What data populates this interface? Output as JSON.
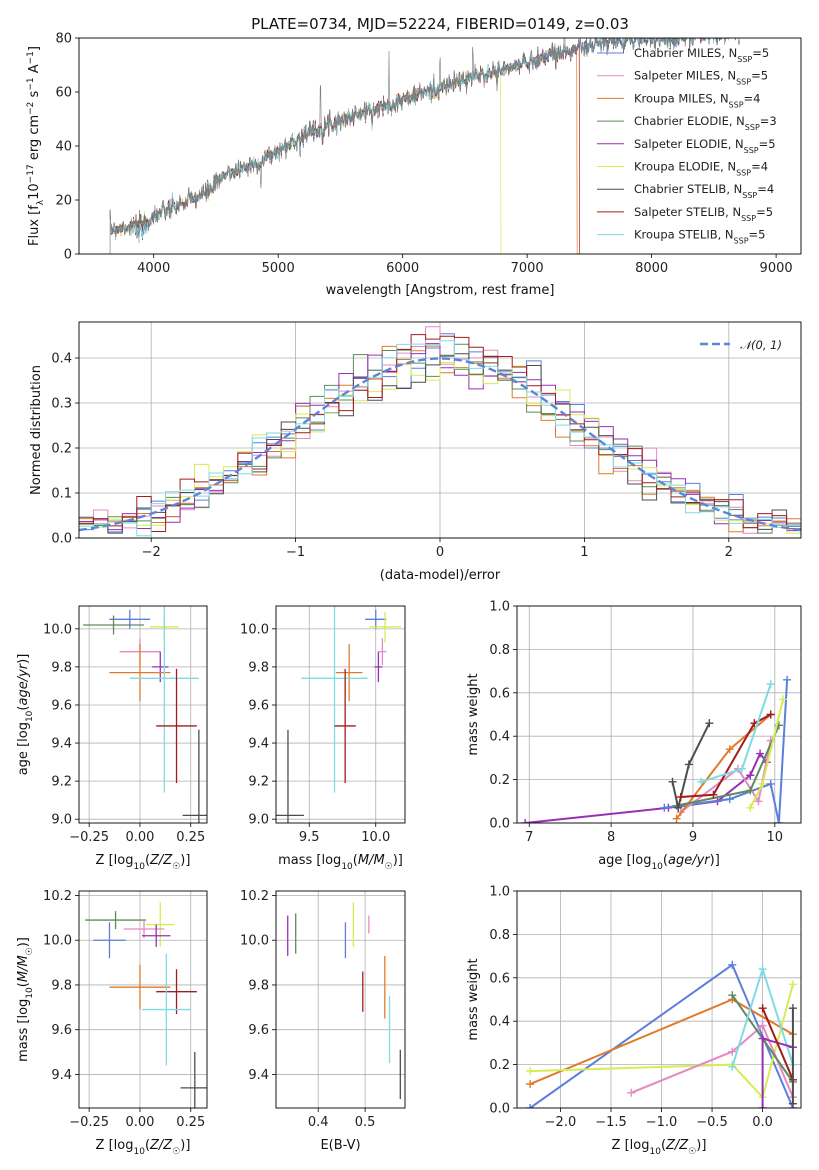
{
  "colors": {
    "s1": "#5b7fdb",
    "s2": "#e38ac5",
    "s3": "#e07b2a",
    "s4": "#5f8a5c",
    "s5": "#9a2fb5",
    "s6": "#d6ec54",
    "s7": "#4d4d4d",
    "s8": "#a31c1c",
    "s9": "#7fdbe3",
    "normal": "#5b86d6",
    "grid": "#b0b0b0"
  },
  "chart_data": [
    {
      "id": "spectrum",
      "type": "line",
      "title": "PLATE=0734, MJD=52224, FIBERID=0149, z=0.03",
      "xlabel": "wavelength [Angstrom, rest frame]",
      "ylabel": "Flux [f_λ 10^-17 erg cm^-2 s^-1 A^-1]",
      "xlim": [
        3400,
        9200
      ],
      "ylim": [
        0,
        80
      ],
      "xticks": [
        "4000",
        "5000",
        "6000",
        "7000",
        "8000",
        "9000"
      ],
      "yticks": [
        "0",
        "20",
        "40",
        "60",
        "80"
      ],
      "grid": false,
      "legend_position": "right",
      "spectrum_knots": [
        [
          3650,
          9
        ],
        [
          3900,
          11
        ],
        [
          4000,
          14
        ],
        [
          4200,
          18
        ],
        [
          4400,
          22
        ],
        [
          4600,
          30
        ],
        [
          4800,
          33
        ],
        [
          5000,
          38
        ],
        [
          5200,
          44
        ],
        [
          5400,
          48
        ],
        [
          5600,
          51
        ],
        [
          5800,
          54
        ],
        [
          6000,
          57
        ],
        [
          6200,
          60
        ],
        [
          6400,
          63
        ],
        [
          6600,
          66
        ],
        [
          6800,
          68
        ],
        [
          7000,
          71
        ],
        [
          7200,
          74
        ],
        [
          7400,
          76
        ],
        [
          7600,
          78
        ],
        [
          7800,
          79
        ],
        [
          8000,
          80
        ],
        [
          8200,
          80
        ],
        [
          8400,
          81
        ],
        [
          8700,
          82
        ]
      ],
      "cutoffs": {
        "Kroupa ELODIE": 6790,
        "Salpeter STELIB": 7420,
        "Kroupa MILES": 7400
      },
      "legend": [
        {
          "name": "Chabrier MILES, N_SSP=5",
          "pre": "Chabrier MILES, N",
          "sub": "SSP",
          "post": "=5",
          "color": "s1"
        },
        {
          "name": "Salpeter MILES, N_SSP=5",
          "pre": "Salpeter MILES, N",
          "sub": "SSP",
          "post": "=5",
          "color": "s2"
        },
        {
          "name": "Kroupa MILES, N_SSP=4",
          "pre": "Kroupa MILES, N",
          "sub": "SSP",
          "post": "=4",
          "color": "s3"
        },
        {
          "name": "Chabrier ELODIE, N_SSP=3",
          "pre": "Chabrier ELODIE, N",
          "sub": "SSP",
          "post": "=3",
          "color": "s4"
        },
        {
          "name": "Salpeter ELODIE, N_SSP=5",
          "pre": "Salpeter ELODIE, N",
          "sub": "SSP",
          "post": "=5",
          "color": "s5"
        },
        {
          "name": "Kroupa ELODIE, N_SSP=4",
          "pre": "Kroupa ELODIE, N",
          "sub": "SSP",
          "post": "=4",
          "color": "s6"
        },
        {
          "name": "Chabrier STELIB, N_SSP=4",
          "pre": "Chabrier STELIB, N",
          "sub": "SSP",
          "post": "=4",
          "color": "s7"
        },
        {
          "name": "Salpeter STELIB, N_SSP=5",
          "pre": "Salpeter STELIB, N",
          "sub": "SSP",
          "post": "=5",
          "color": "s8"
        },
        {
          "name": "Kroupa STELIB, N_SSP=5",
          "pre": "Kroupa STELIB, N",
          "sub": "SSP",
          "post": "=5",
          "color": "s9"
        }
      ]
    },
    {
      "id": "residuals",
      "type": "bar",
      "xlabel": "(data-model)/error",
      "ylabel": "Normed distribution",
      "xlim": [
        -2.5,
        2.5
      ],
      "ylim": [
        0,
        0.48
      ],
      "xticks": [
        "−2",
        "−1",
        "0",
        "1",
        "2"
      ],
      "yticks": [
        "0.0",
        "0.1",
        "0.2",
        "0.3",
        "0.4"
      ],
      "grid": true,
      "bin_width": 0.1,
      "legend_label": "𝒩(0, 1)",
      "legend_position": "top-right"
    },
    {
      "id": "age_vs_Z",
      "type": "scatter",
      "xlabel": "Z [log10(Z/Z☉)]",
      "ylabel": "age [log10(age/yr)]",
      "xlim": [
        -0.3,
        0.33
      ],
      "ylim": [
        8.98,
        10.12
      ],
      "xticks": [
        "−0.25",
        "0.00",
        "0.25"
      ],
      "yticks": [
        "9.0",
        "9.2",
        "9.4",
        "9.6",
        "9.8",
        "10.0"
      ],
      "grid": true,
      "points": [
        {
          "color": "s1",
          "x": -0.05,
          "xerr": 0.1,
          "y": 10.05,
          "yerr": 0.05
        },
        {
          "color": "s4",
          "x": -0.13,
          "xerr": 0.15,
          "y": 10.02,
          "yerr": 0.05
        },
        {
          "color": "s6",
          "x": 0.12,
          "xerr": 0.07,
          "y": 10.01,
          "yerr": 0.08
        },
        {
          "color": "s2",
          "x": 0.0,
          "xerr": 0.1,
          "y": 9.88,
          "yerr": 0.07
        },
        {
          "color": "s5",
          "x": 0.1,
          "xerr": 0.04,
          "y": 9.8,
          "yerr": 0.08
        },
        {
          "color": "s3",
          "x": 0.0,
          "xerr": 0.15,
          "y": 9.77,
          "yerr": 0.15
        },
        {
          "color": "s9",
          "x": 0.12,
          "xerr": 0.17,
          "y": 9.74,
          "yerr": 0.6
        },
        {
          "color": "s8",
          "x": 0.18,
          "xerr": 0.1,
          "y": 9.49,
          "yerr": 0.3
        },
        {
          "color": "s7",
          "x": 0.29,
          "xerr": 0.08,
          "y": 9.02,
          "yerr": 0.45
        }
      ]
    },
    {
      "id": "age_vs_mass",
      "type": "scatter",
      "xlabel": "mass [log10(M/M☉)]",
      "xlim": [
        9.25,
        10.22
      ],
      "ylim": [
        8.98,
        10.12
      ],
      "xticks": [
        "9.5",
        "10.0"
      ],
      "yticks": [
        "9.0",
        "9.2",
        "9.4",
        "9.6",
        "9.8",
        "10.0"
      ],
      "grid": true,
      "points": [
        {
          "color": "s1",
          "x": 10.0,
          "xerr": 0.08,
          "y": 10.05,
          "yerr": 0.05
        },
        {
          "color": "s6",
          "x": 10.07,
          "xerr": 0.12,
          "y": 10.01,
          "yerr": 0.08
        },
        {
          "color": "s2",
          "x": 10.05,
          "xerr": 0.03,
          "y": 9.88,
          "yerr": 0.07
        },
        {
          "color": "s5",
          "x": 10.02,
          "xerr": 0.03,
          "y": 9.8,
          "yerr": 0.08
        },
        {
          "color": "s3",
          "x": 9.8,
          "xerr": 0.1,
          "y": 9.77,
          "yerr": 0.15
        },
        {
          "color": "s9",
          "x": 9.69,
          "xerr": 0.25,
          "y": 9.74,
          "yerr": 0.6
        },
        {
          "color": "s8",
          "x": 9.77,
          "xerr": 0.08,
          "y": 9.49,
          "yerr": 0.3
        },
        {
          "color": "s7",
          "x": 9.34,
          "xerr": 0.12,
          "y": 9.02,
          "yerr": 0.45
        }
      ]
    },
    {
      "id": "mass_weight_vs_age",
      "type": "line",
      "xlabel": "age [log10(age/yr)]",
      "ylabel": "mass weight",
      "xlim": [
        6.85,
        10.32
      ],
      "ylim": [
        0,
        1.0
      ],
      "xticks": [
        "7",
        "8",
        "9",
        "10"
      ],
      "yticks": [
        "0.0",
        "0.2",
        "0.4",
        "0.6",
        "0.8",
        "1.0"
      ],
      "grid": true,
      "series": [
        {
          "color": "s5",
          "points": [
            [
              6.95,
              0.0
            ],
            [
              8.7,
              0.07
            ],
            [
              9.3,
              0.1
            ],
            [
              9.7,
              0.22
            ],
            [
              9.82,
              0.32
            ],
            [
              9.9,
              0.28
            ]
          ]
        },
        {
          "color": "s1",
          "points": [
            [
              8.65,
              0.07
            ],
            [
              9.45,
              0.11
            ],
            [
              9.95,
              0.18
            ],
            [
              10.05,
              0.0
            ],
            [
              10.15,
              0.66
            ]
          ]
        },
        {
          "color": "s2",
          "points": [
            [
              8.85,
              0.05
            ],
            [
              9.55,
              0.25
            ],
            [
              9.8,
              0.1
            ],
            [
              9.95,
              0.38
            ]
          ]
        },
        {
          "color": "s3",
          "points": [
            [
              8.8,
              0.02
            ],
            [
              9.45,
              0.34
            ],
            [
              9.95,
              0.5
            ]
          ]
        },
        {
          "color": "s4",
          "points": [
            [
              8.8,
              0.08
            ],
            [
              9.7,
              0.15
            ],
            [
              10.05,
              0.45
            ]
          ]
        },
        {
          "color": "s6",
          "points": [
            [
              9.7,
              0.07
            ],
            [
              9.85,
              0.18
            ],
            [
              10.1,
              0.57
            ]
          ]
        },
        {
          "color": "s7",
          "points": [
            [
              8.75,
              0.19
            ],
            [
              8.82,
              0.07
            ],
            [
              8.95,
              0.27
            ],
            [
              9.2,
              0.46
            ]
          ]
        },
        {
          "color": "s8",
          "points": [
            [
              8.85,
              0.12
            ],
            [
              9.25,
              0.13
            ],
            [
              9.75,
              0.46
            ],
            [
              9.95,
              0.5
            ]
          ]
        },
        {
          "color": "s9",
          "points": [
            [
              9.1,
              0.19
            ],
            [
              9.6,
              0.25
            ],
            [
              9.95,
              0.64
            ]
          ]
        }
      ]
    },
    {
      "id": "mass_vs_Z",
      "type": "scatter",
      "xlabel": "Z [log10(Z/Z☉)]",
      "ylabel": "mass [log10(M/M☉)]",
      "xlim": [
        -0.3,
        0.33
      ],
      "ylim": [
        9.25,
        10.22
      ],
      "xticks": [
        "−0.25",
        "0.00",
        "0.25"
      ],
      "yticks": [
        "9.4",
        "9.6",
        "9.8",
        "10.0",
        "10.2"
      ],
      "grid": true,
      "points": [
        {
          "color": "s4",
          "x": -0.12,
          "xerr": 0.15,
          "y": 10.09,
          "yerr": 0.04
        },
        {
          "color": "s6",
          "x": 0.1,
          "xerr": 0.07,
          "y": 10.07,
          "yerr": 0.1
        },
        {
          "color": "s2",
          "x": 0.02,
          "xerr": 0.1,
          "y": 10.05,
          "yerr": 0.04
        },
        {
          "color": "s5",
          "x": 0.08,
          "xerr": 0.07,
          "y": 10.02,
          "yerr": 0.05
        },
        {
          "color": "s1",
          "x": -0.15,
          "xerr": 0.08,
          "y": 10.0,
          "yerr": 0.08
        },
        {
          "color": "s3",
          "x": 0.0,
          "xerr": 0.15,
          "y": 9.79,
          "yerr": 0.1
        },
        {
          "color": "s8",
          "x": 0.18,
          "xerr": 0.1,
          "y": 9.77,
          "yerr": 0.1
        },
        {
          "color": "s9",
          "x": 0.13,
          "xerr": 0.12,
          "y": 9.69,
          "yerr": 0.25
        },
        {
          "color": "s7",
          "x": 0.27,
          "xerr": 0.07,
          "y": 9.34,
          "yerr": 0.16
        }
      ]
    },
    {
      "id": "mass_vs_ebv",
      "type": "scatter",
      "xlabel": "E(B-V)",
      "xlim": [
        0.31,
        0.585
      ],
      "ylim": [
        9.25,
        10.22
      ],
      "xticks": [
        "0.4",
        "0.5"
      ],
      "yticks": [
        "9.4",
        "9.6",
        "9.8",
        "10.0",
        "10.2"
      ],
      "grid": true,
      "points": [
        {
          "color": "s5",
          "x": 0.335,
          "y": 10.02,
          "yerr": 0.09
        },
        {
          "color": "s4",
          "x": 0.352,
          "y": 10.03,
          "yerr": 0.09
        },
        {
          "color": "s1",
          "x": 0.458,
          "y": 10.0,
          "yerr": 0.08
        },
        {
          "color": "s6",
          "x": 0.475,
          "y": 10.07,
          "yerr": 0.1
        },
        {
          "color": "s2",
          "x": 0.508,
          "y": 10.07,
          "yerr": 0.04
        },
        {
          "color": "s8",
          "x": 0.495,
          "y": 9.77,
          "yerr": 0.09
        },
        {
          "color": "s3",
          "x": 0.542,
          "y": 9.79,
          "yerr": 0.14
        },
        {
          "color": "s9",
          "x": 0.552,
          "y": 9.6,
          "yerr": 0.15
        },
        {
          "color": "s7",
          "x": 0.575,
          "y": 9.4,
          "yerr": 0.11
        }
      ]
    },
    {
      "id": "mass_weight_vs_Z",
      "type": "line",
      "xlabel": "Z [log10(Z/Z☉)]",
      "ylabel": "mass weight",
      "xlim": [
        -2.43,
        0.38
      ],
      "ylim": [
        0,
        1.0
      ],
      "xticks": [
        "−2.0",
        "−1.5",
        "−1.0",
        "−0.5",
        "0.0"
      ],
      "yticks": [
        "0.0",
        "0.2",
        "0.4",
        "0.6",
        "0.8",
        "1.0"
      ],
      "grid": true,
      "series": [
        {
          "color": "s1",
          "points": [
            [
              -2.3,
              0.0
            ],
            [
              -0.3,
              0.66
            ],
            [
              0.3,
              0.0
            ]
          ]
        },
        {
          "color": "s3",
          "points": [
            [
              -2.3,
              0.11
            ],
            [
              -0.3,
              0.5
            ],
            [
              0.3,
              0.34
            ]
          ]
        },
        {
          "color": "s6",
          "points": [
            [
              -2.3,
              0.17
            ],
            [
              -0.3,
              0.2
            ],
            [
              0.0,
              0.05
            ],
            [
              0.3,
              0.57
            ]
          ]
        },
        {
          "color": "s2",
          "points": [
            [
              -1.3,
              0.07
            ],
            [
              -0.3,
              0.26
            ],
            [
              0.0,
              0.38
            ],
            [
              0.3,
              0.05
            ]
          ]
        },
        {
          "color": "s4",
          "points": [
            [
              -0.3,
              0.52
            ],
            [
              0.3,
              0.12
            ]
          ]
        },
        {
          "color": "s9",
          "points": [
            [
              -0.3,
              0.19
            ],
            [
              0.0,
              0.64
            ],
            [
              0.3,
              0.2
            ]
          ]
        },
        {
          "color": "s5",
          "points": [
            [
              0.0,
              0.0
            ],
            [
              0.0,
              0.32
            ],
            [
              0.3,
              0.28
            ]
          ]
        },
        {
          "color": "s8",
          "points": [
            [
              0.0,
              0.46
            ],
            [
              0.3,
              0.13
            ]
          ]
        },
        {
          "color": "s7",
          "points": [
            [
              0.3,
              0.46
            ],
            [
              0.3,
              0.02
            ]
          ]
        }
      ]
    }
  ]
}
